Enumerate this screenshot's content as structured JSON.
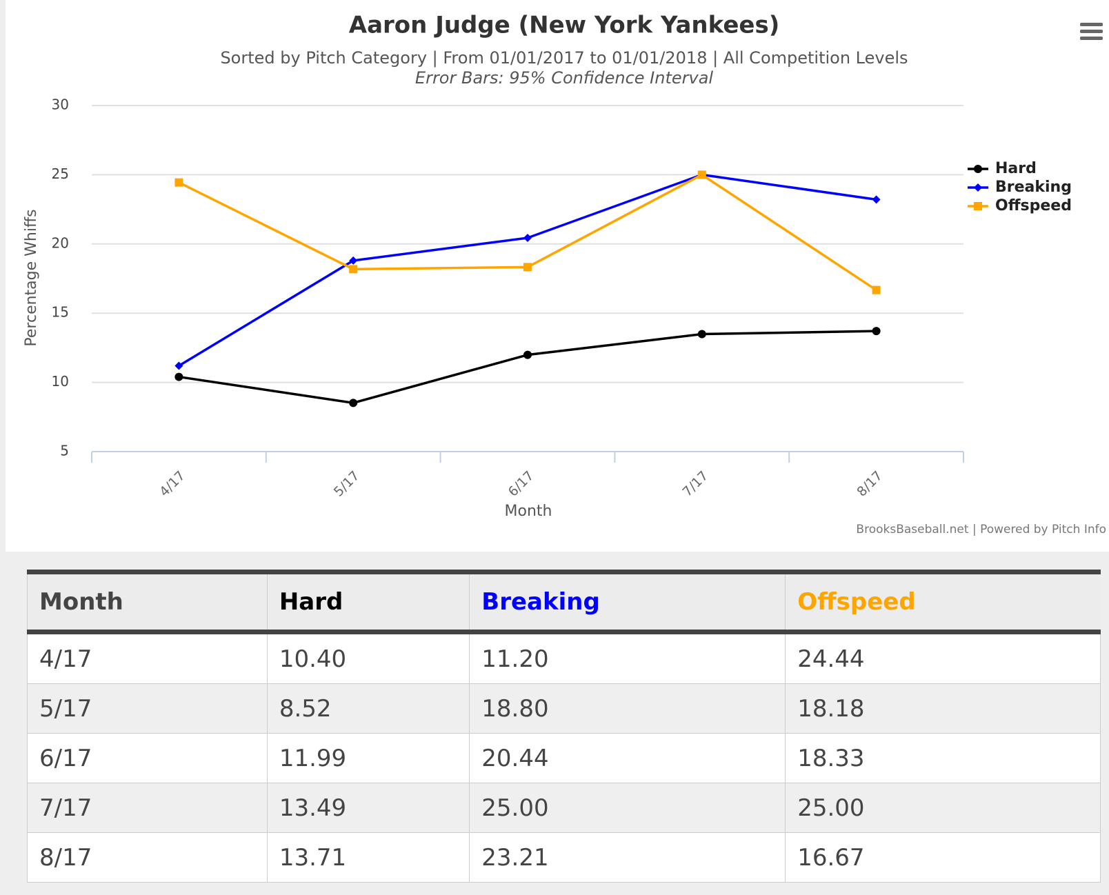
{
  "chart_data": {
    "type": "line",
    "title": "Aaron Judge (New York Yankees)",
    "subtitle": "Sorted by Pitch Category | From 01/01/2017 to 01/01/2018 | All Competition Levels",
    "note": "Error Bars: 95% Confidence Interval",
    "credit": "BrooksBaseball.net | Powered by Pitch Info",
    "x_label": "Month",
    "y_label": "Percentage Whiffs",
    "categories": [
      "4/17",
      "5/17",
      "6/17",
      "7/17",
      "8/17"
    ],
    "series": [
      {
        "name": "Hard",
        "color": "#000000",
        "marker": "circle",
        "values": [
          10.4,
          8.52,
          11.99,
          13.49,
          13.71
        ]
      },
      {
        "name": "Breaking",
        "color": "#0000ff",
        "marker": "diamond",
        "values": [
          11.2,
          18.8,
          20.44,
          25.0,
          23.21
        ]
      },
      {
        "name": "Offspeed",
        "color": "#ffa500",
        "marker": "square",
        "values": [
          24.44,
          18.18,
          18.33,
          25.0,
          16.67
        ]
      }
    ],
    "ylim": [
      5,
      30
    ],
    "yticks": [
      5,
      10,
      15,
      20,
      25,
      30
    ],
    "grid": true,
    "legend": "right"
  },
  "table": {
    "header": [
      "Month",
      "Hard",
      "Breaking",
      "Offspeed"
    ],
    "rows": [
      [
        "4/17",
        "10.40",
        "11.20",
        "24.44"
      ],
      [
        "5/17",
        "8.52",
        "18.80",
        "18.18"
      ],
      [
        "6/17",
        "11.99",
        "20.44",
        "18.33"
      ],
      [
        "7/17",
        "13.49",
        "25.00",
        "25.00"
      ],
      [
        "8/17",
        "13.71",
        "23.21",
        "16.67"
      ]
    ]
  }
}
